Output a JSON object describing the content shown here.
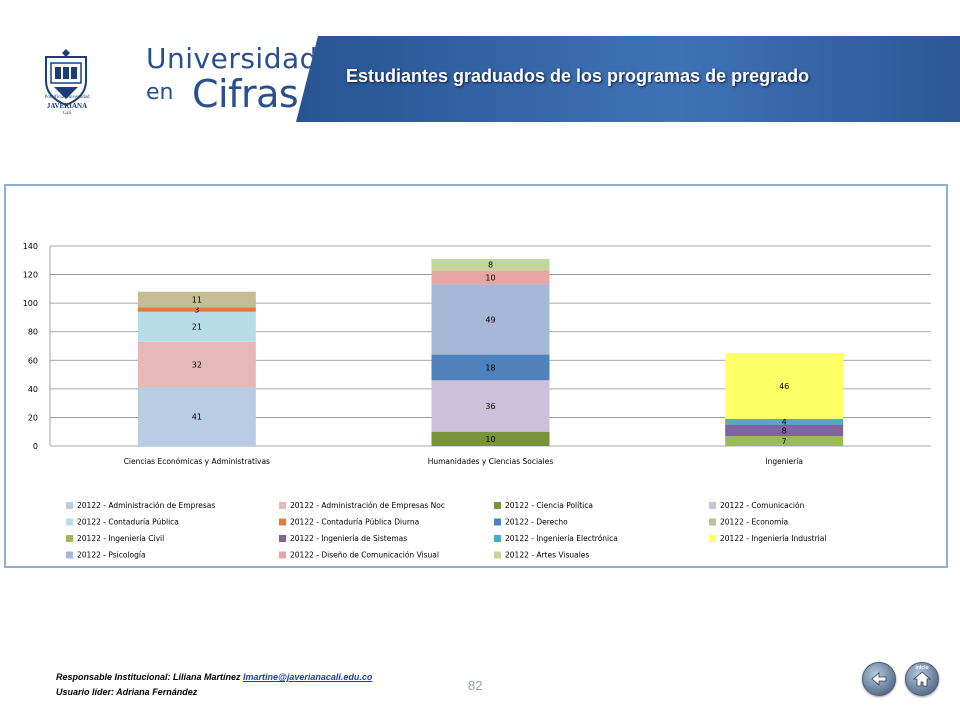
{
  "header": {
    "institution_line1": "Pontificia Universidad",
    "institution_line2": "JAVERIANA",
    "institution_line3": "Cali",
    "brand_line1": "Universidad",
    "brand_line2": "en",
    "brand_line3": "Cifras",
    "title": "Estudiantes graduados de los programas de pregrado",
    "banner_color": "#2f5e9e"
  },
  "chart_data": {
    "type": "bar",
    "stacked": true,
    "categories": [
      "Ciencias Económicas y Administrativas",
      "Humanidades y Ciencias Sociales",
      "Ingeniería"
    ],
    "ylim": [
      0,
      140
    ],
    "yticks": [
      "0",
      "20",
      "40",
      "60",
      "80",
      "100",
      "120",
      "140"
    ],
    "grid": true,
    "legend_position": "bottom",
    "series": [
      {
        "name": "20122 - Administración de Empresas",
        "color": "#b8cce4",
        "values": [
          41,
          null,
          null
        ]
      },
      {
        "name": "20122 - Administración de Empresas Noc",
        "color": "#e6b9b8",
        "values": [
          32,
          null,
          null
        ]
      },
      {
        "name": "20122 - Contaduría Pública",
        "color": "#b7dee8",
        "values": [
          21,
          null,
          null
        ]
      },
      {
        "name": "20122 - Contaduría Pública Diurna",
        "color": "#e07b39",
        "values": [
          3,
          null,
          null
        ]
      },
      {
        "name": "20122 - Economía",
        "color": "#c4bd97",
        "values": [
          11,
          null,
          null
        ]
      },
      {
        "name": "20122 - Ciencia Política",
        "color": "#77933c",
        "values": [
          null,
          10,
          null
        ]
      },
      {
        "name": "20122 - Comunicación",
        "color": "#ccc0da",
        "values": [
          null,
          36,
          null
        ]
      },
      {
        "name": "20122 - Derecho",
        "color": "#4f81bd",
        "values": [
          null,
          18,
          null
        ]
      },
      {
        "name": "20122 - Psicología",
        "color": "#a6b7d8",
        "values": [
          null,
          49,
          null
        ]
      },
      {
        "name": "20122 - Diseño de Comunicación Visual",
        "color": "#e6a6a6",
        "values": [
          null,
          10,
          null
        ]
      },
      {
        "name": "20122 - Artes Visuales",
        "color": "#c3d69b",
        "values": [
          null,
          8,
          null
        ]
      },
      {
        "name": "20122 - Ingeniería Civil",
        "color": "#9bbb59",
        "values": [
          null,
          null,
          7
        ]
      },
      {
        "name": "20122 - Ingeniería de Sistemas",
        "color": "#8064a2",
        "values": [
          null,
          null,
          8
        ]
      },
      {
        "name": "20122 - Ingeniería Electrónica",
        "color": "#4bacc6",
        "values": [
          null,
          null,
          4
        ]
      },
      {
        "name": "20122 - Ingeniería Industrial",
        "color": "#ffff66",
        "values": [
          null,
          null,
          46
        ]
      }
    ],
    "legend_order": [
      "20122 - Administración de Empresas",
      "20122 - Administración de Empresas Noc",
      "20122 - Ciencia Política",
      "20122 - Comunicación",
      "20122 - Contaduría Pública",
      "20122 - Contaduría Pública Diurna",
      "20122 - Derecho",
      "20122 - Economía",
      "20122 - Ingeniería Civil",
      "20122 - Ingeniería de Sistemas",
      "20122 - Ingeniería Electrónica",
      "20122 - Ingeniería Industrial",
      "20122 - Psicología",
      "20122 - Diseño de Comunicación Visual",
      "20122 - Artes Visuales"
    ]
  },
  "footer": {
    "responsible_label": "Responsable Institucional: Liliana Martínez",
    "email": "lmartine@javerianacali.edu.co",
    "leader_label": "Usuario líder: Adriana Fernández",
    "page_number": "82",
    "home_label": "Inicio"
  }
}
